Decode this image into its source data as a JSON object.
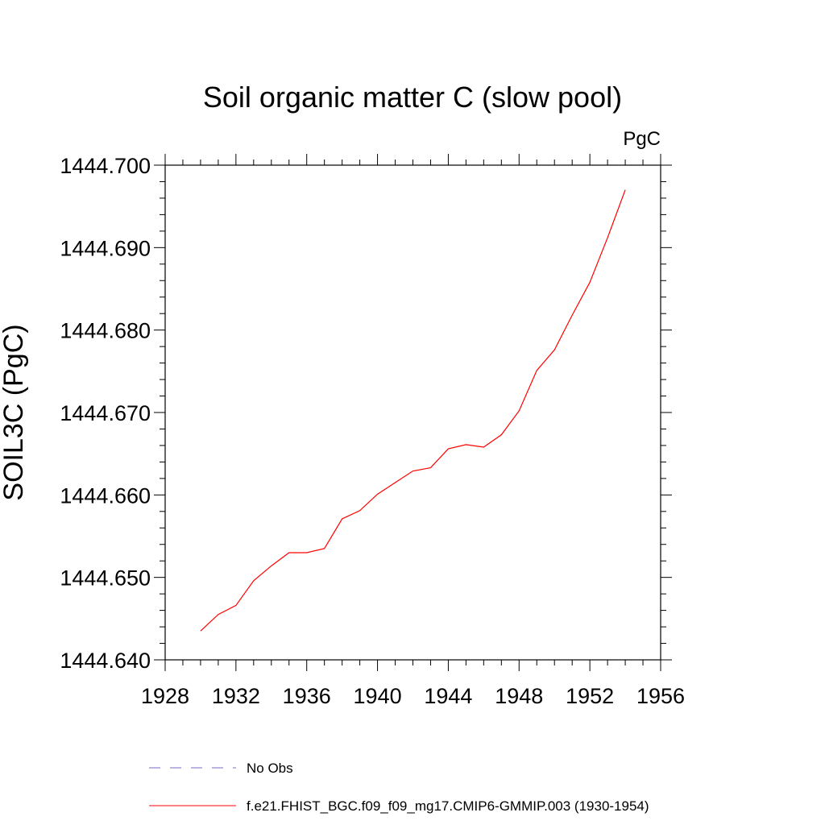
{
  "chart_data": {
    "type": "line",
    "title": "Soil organic matter C (slow pool)",
    "units_label": "PgC",
    "ylabel": "SOIL3C  (PgC)",
    "xlabel": "",
    "xlim": [
      1928,
      1956
    ],
    "ylim": [
      1444.64,
      1444.7
    ],
    "x_ticks": [
      "1928",
      "1932",
      "1936",
      "1940",
      "1944",
      "1948",
      "1952",
      "1956"
    ],
    "y_ticks": [
      "1444.640",
      "1444.650",
      "1444.660",
      "1444.670",
      "1444.680",
      "1444.690",
      "1444.700"
    ],
    "grid": false,
    "legend_position": "bottom",
    "legend": [
      {
        "label": "No Obs",
        "color": "#7b68c8",
        "style": "dashed"
      },
      {
        "label": "f.e21.FHIST_BGC.f09_f09_mg17.CMIP6-GMMIP.003 (1930-1954)",
        "color": "#ff0000",
        "style": "solid"
      }
    ],
    "series": [
      {
        "name": "f.e21.FHIST_BGC.f09_f09_mg17.CMIP6-GMMIP.003 (1930-1954)",
        "color": "#ff0000",
        "x": [
          1930,
          1931,
          1932,
          1933,
          1934,
          1935,
          1936,
          1937,
          1938,
          1939,
          1940,
          1941,
          1942,
          1943,
          1944,
          1945,
          1946,
          1947,
          1948,
          1949,
          1950,
          1951,
          1952,
          1953,
          1954
        ],
        "y": [
          1444.6435,
          1444.6455,
          1444.6466,
          1444.6496,
          1444.6514,
          1444.653,
          1444.653,
          1444.6535,
          1444.6571,
          1444.6581,
          1444.6601,
          1444.6615,
          1444.6629,
          1444.6633,
          1444.6656,
          1444.6661,
          1444.6658,
          1444.6673,
          1444.6702,
          1444.6751,
          1444.6776,
          1444.6818,
          1444.6858,
          1444.6912,
          1444.697
        ]
      }
    ]
  }
}
